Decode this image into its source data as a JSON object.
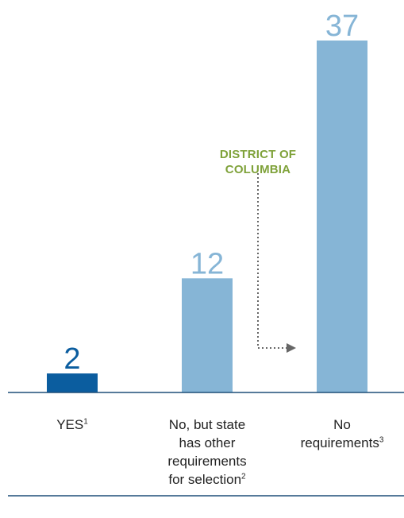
{
  "chart_data": {
    "type": "bar",
    "categories": [
      "YES",
      "No, but state has other requirements for selection",
      "No requirements"
    ],
    "category_lines": [
      [
        {
          "text": "YES",
          "sup": "1"
        }
      ],
      [
        {
          "text": "No, but state"
        },
        {
          "text": "has other"
        },
        {
          "text": "requirements"
        },
        {
          "text": "for selection",
          "sup": "2"
        }
      ],
      [
        {
          "text": "No"
        },
        {
          "text": "requirements",
          "sup": "3"
        }
      ]
    ],
    "values": [
      2,
      12,
      37
    ],
    "value_labels": [
      "2",
      "12",
      "37"
    ],
    "colors": [
      "#0b5d9f",
      "#86b5d6",
      "#86b5d6"
    ],
    "label_colors": [
      "#0b5d9f",
      "#86b5d6",
      "#86b5d6"
    ],
    "ylim": [
      0,
      37
    ],
    "title": "",
    "xlabel": "",
    "ylabel": "",
    "annotation": {
      "lines": [
        "DISTRICT OF",
        "COLUMBIA"
      ],
      "color": "#7fa23a",
      "points_to_category": "No requirements"
    },
    "grid": false
  }
}
